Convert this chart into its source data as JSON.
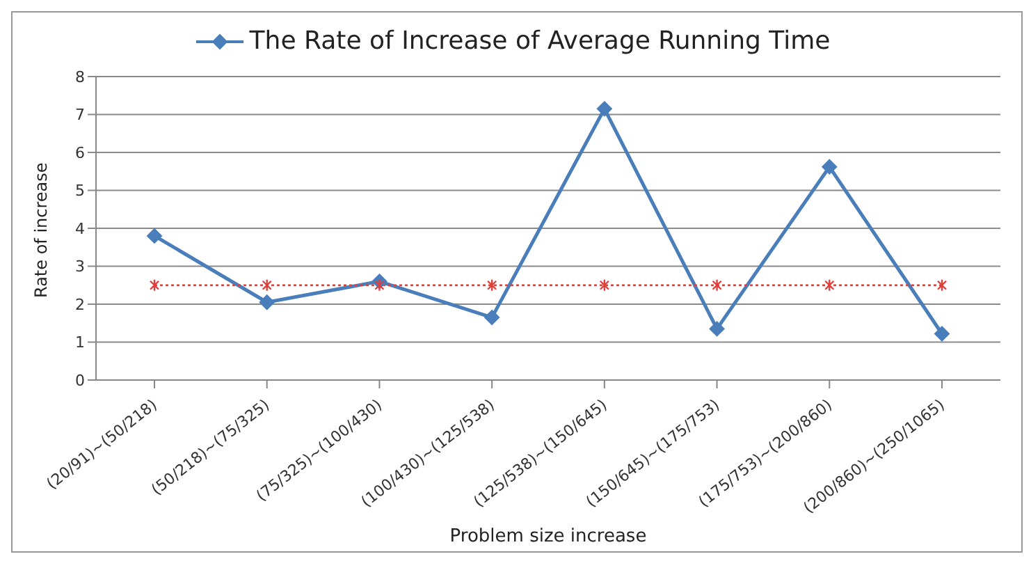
{
  "chart_data": {
    "type": "line",
    "xlabel": "Problem size increase",
    "ylabel": "Rate of increase",
    "categories": [
      "(20/91)~(50/218)",
      "(50/218)~(75/325)",
      "(75/325)~(100/430)",
      "(100/430)~(125/538)",
      "(125/538)~(150/645)",
      "(150/645)~(175/753)",
      "(175/753)~(200/860)",
      "(200/860)~(250/1065)"
    ],
    "series": [
      {
        "name": "The Rate of Increase of Average Running Time",
        "color": "#4a7ebb",
        "marker": "diamond",
        "line_style": "solid",
        "values": [
          3.8,
          2.05,
          2.6,
          1.65,
          7.15,
          1.35,
          5.62,
          1.22
        ]
      },
      {
        "color": "#e0403c",
        "marker": "cross",
        "line_style": "dotted",
        "values": [
          2.5,
          2.5,
          2.5,
          2.5,
          2.5,
          2.5,
          2.5,
          2.5
        ]
      }
    ],
    "ylim": [
      0,
      8
    ],
    "yticks": [
      0,
      1,
      2,
      3,
      4,
      5,
      6,
      7,
      8
    ],
    "grid": "y",
    "legend": "top"
  }
}
